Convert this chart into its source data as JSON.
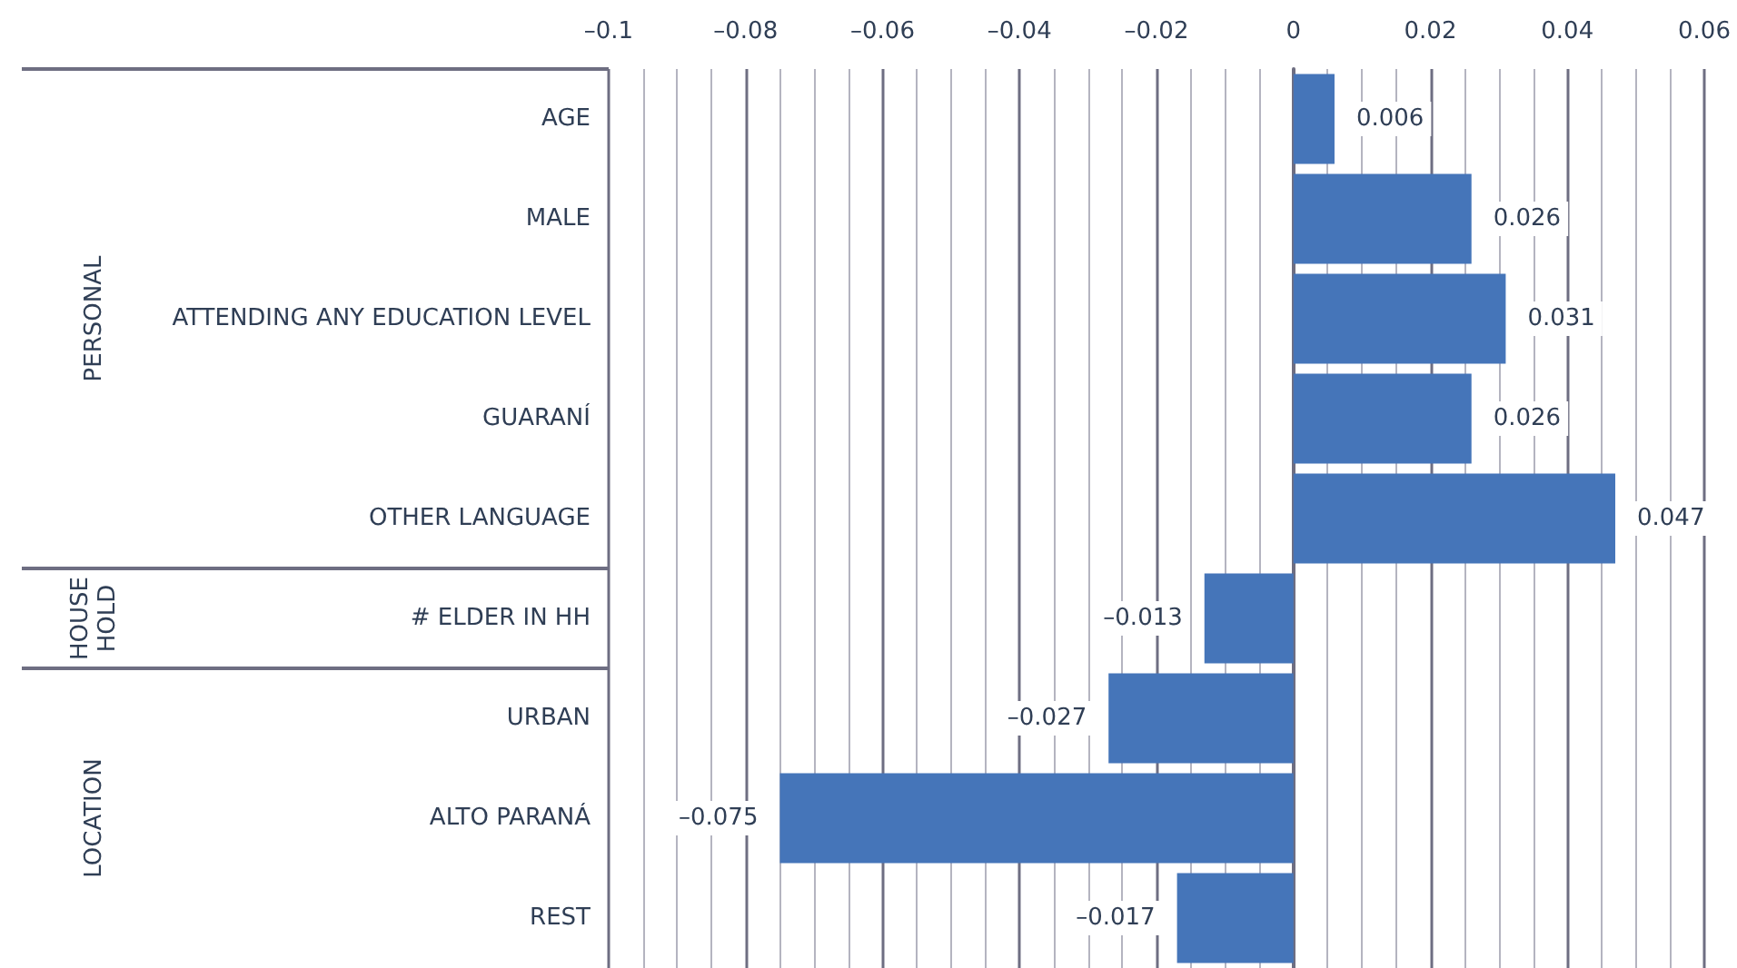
{
  "chart_data": {
    "type": "bar",
    "orientation": "horizontal",
    "categories": [
      "AGE",
      "MALE",
      "ATTENDING ANY EDUCATION LEVEL",
      "GUARANÍ",
      "OTHER LANGUAGE",
      "# ELDER IN HH",
      "URBAN",
      "ALTO PARANÁ",
      "REST"
    ],
    "values": [
      0.006,
      0.026,
      0.031,
      0.026,
      0.047,
      -0.013,
      -0.027,
      -0.075,
      -0.017
    ],
    "value_labels": [
      "0.006",
      "0.026",
      "0.031",
      "0.026",
      "0.047",
      "–0.013",
      "–0.027",
      "–0.075",
      "–0.017"
    ],
    "color": "#4575b9",
    "xlim": [
      -0.1,
      0.06
    ],
    "xticks": [
      {
        "value": -0.1,
        "label": "–0.1"
      },
      {
        "value": -0.08,
        "label": "–0.08"
      },
      {
        "value": -0.06,
        "label": "–0.06"
      },
      {
        "value": -0.04,
        "label": "–0.04"
      },
      {
        "value": -0.02,
        "label": "–0.02"
      },
      0,
      0.02,
      0.04,
      0.06
    ],
    "grid": "x",
    "annotations": [
      "PERSONAL",
      "HOUSE HOLD",
      "LOCATION"
    ]
  }
}
